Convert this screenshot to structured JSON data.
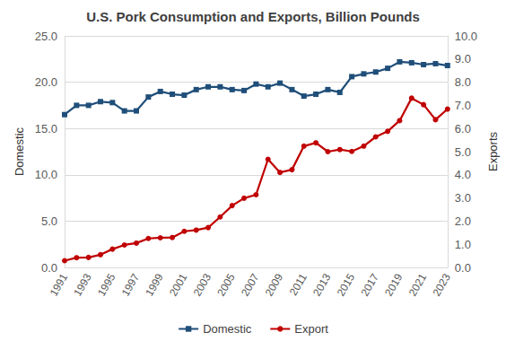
{
  "chart_data": {
    "type": "line",
    "title": "U.S. Pork Consumption and Exports, Billion Pounds",
    "y_label": "Domestic",
    "y2_label": "Exports",
    "categories": [
      "1991",
      null,
      "1993",
      null,
      "1995",
      null,
      "1997",
      null,
      "1999",
      null,
      "2001",
      null,
      "2003",
      null,
      "2005",
      null,
      "2007",
      null,
      "2009",
      null,
      "2011",
      null,
      "2013",
      null,
      "2015",
      null,
      "2017",
      null,
      "2019",
      null,
      "2021",
      null,
      "2023"
    ],
    "series": [
      {
        "name": "Domestic",
        "color": "#1f4e79",
        "marker": "square",
        "line_style": "solid",
        "values": [
          16.5,
          17.5,
          17.5,
          17.9,
          17.8,
          16.9,
          16.9,
          18.4,
          19.0,
          18.7,
          18.6,
          19.2,
          19.5,
          19.5,
          19.2,
          19.1,
          19.8,
          19.5,
          19.9,
          19.2,
          18.5,
          18.7,
          19.2,
          18.9,
          20.6,
          20.9,
          21.1,
          21.5,
          22.2,
          22.1,
          21.9,
          22.0,
          21.8
        ]
      },
      {
        "name": "Export",
        "color": "#c00000",
        "marker": "circle",
        "line_style": "solid",
        "axis": "y2",
        "values": [
          0.29,
          0.42,
          0.43,
          0.55,
          0.79,
          0.97,
          1.05,
          1.25,
          1.28,
          1.29,
          1.56,
          1.61,
          1.72,
          2.18,
          2.67,
          2.99,
          3.14,
          4.67,
          4.1,
          4.22,
          5.24,
          5.38,
          5.0,
          5.09,
          5.01,
          5.24,
          5.64,
          5.88,
          6.34,
          7.31,
          7.03,
          6.38,
          6.84
        ]
      }
    ],
    "ylim": [
      0,
      25
    ],
    "yticks": [
      {
        "value": 0,
        "label": "0.0"
      },
      {
        "value": 5,
        "label": "5.0"
      },
      {
        "value": 10,
        "label": "10.0"
      },
      {
        "value": 15,
        "label": "15.0"
      },
      {
        "value": 20,
        "label": "20.0"
      },
      {
        "value": 25,
        "label": "25.0"
      }
    ],
    "y2lim": [
      0,
      10
    ],
    "y2ticks": [
      {
        "value": 0,
        "label": "0.0"
      },
      {
        "value": 1,
        "label": "1.0"
      },
      {
        "value": 2,
        "label": "2.0"
      },
      {
        "value": 3,
        "label": "3.0"
      },
      {
        "value": 4,
        "label": "4.0"
      },
      {
        "value": 5,
        "label": "5.0"
      },
      {
        "value": 6,
        "label": "6.0"
      },
      {
        "value": 7,
        "label": "7.0"
      },
      {
        "value": 8,
        "label": "8.0"
      },
      {
        "value": 9,
        "label": "9.0"
      },
      {
        "value": 10,
        "label": "10.0"
      }
    ],
    "grid": true,
    "legend": "bottom"
  }
}
